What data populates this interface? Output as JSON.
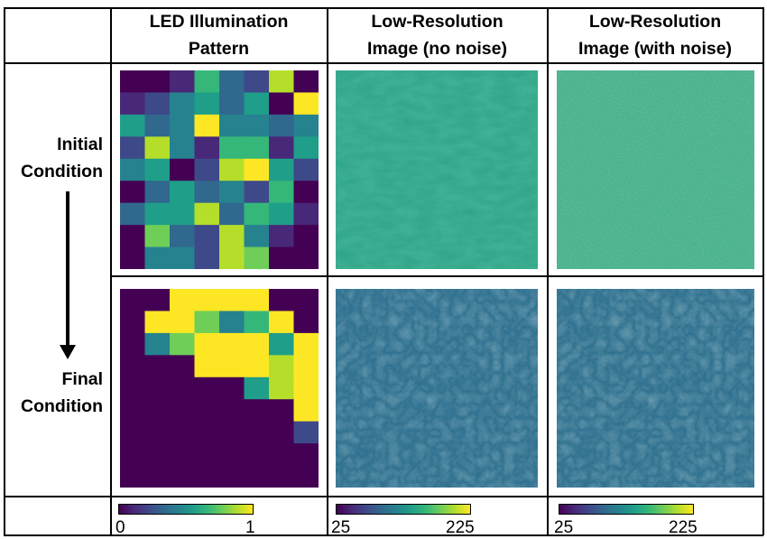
{
  "headers": {
    "col1": "LED Illumination Pattern",
    "col2": "Low-Resolution Image (no noise)",
    "col3": "Low-Resolution Image (with noise)"
  },
  "rows": {
    "initial": "Initial Condition",
    "final": "Final Condition"
  },
  "colorbars": {
    "led": {
      "min": "0",
      "max": "1"
    },
    "img_no_noise": {
      "min": "25",
      "max": "225"
    },
    "img_noise": {
      "min": "25",
      "max": "225"
    }
  },
  "colormap": [
    "#440154",
    "#482878",
    "#3e4989",
    "#31688e",
    "#26828e",
    "#1f9e89",
    "#35b779",
    "#6ece58",
    "#b5de2b",
    "#fde725"
  ],
  "led_initial": [
    [
      0.0,
      0.0,
      0.1,
      0.7,
      0.3,
      0.2,
      0.9,
      0.05
    ],
    [
      0.15,
      0.25,
      0.4,
      0.6,
      0.35,
      0.5,
      0.0,
      0.95
    ],
    [
      0.55,
      0.3,
      0.45,
      0.95,
      0.4,
      0.45,
      0.35,
      0.45
    ],
    [
      0.2,
      0.85,
      0.45,
      0.1,
      0.7,
      0.65,
      0.15,
      0.55
    ],
    [
      0.45,
      0.6,
      0.05,
      0.25,
      0.9,
      0.95,
      0.5,
      0.2
    ],
    [
      0.0,
      0.35,
      0.6,
      0.3,
      0.45,
      0.2,
      0.7,
      0.05
    ],
    [
      0.3,
      0.6,
      0.5,
      0.85,
      0.3,
      0.65,
      0.55,
      0.15
    ],
    [
      0.05,
      0.75,
      0.3,
      0.2,
      0.9,
      0.4,
      0.1,
      0.0
    ],
    [
      0.0,
      0.45,
      0.4,
      0.25,
      0.85,
      0.8,
      0.0,
      0.0
    ]
  ],
  "led_final": [
    [
      0.0,
      0.0,
      1.0,
      1.0,
      1.0,
      1.0,
      0.0,
      0.0
    ],
    [
      0.0,
      1.0,
      1.0,
      0.75,
      0.4,
      0.65,
      1.0,
      0.0
    ],
    [
      0.0,
      0.45,
      0.75,
      1.0,
      1.0,
      0.95,
      0.6,
      1.0
    ],
    [
      0.0,
      0.0,
      0.0,
      1.0,
      1.0,
      1.0,
      0.9,
      1.0
    ],
    [
      0.0,
      0.0,
      0.0,
      0.0,
      0.0,
      0.6,
      0.85,
      1.0
    ],
    [
      0.0,
      0.0,
      0.0,
      0.0,
      0.0,
      0.0,
      0.0,
      1.0
    ],
    [
      0.0,
      0.0,
      0.0,
      0.0,
      0.0,
      0.0,
      0.0,
      0.25
    ],
    [
      0.0,
      0.0,
      0.0,
      0.0,
      0.0,
      0.0,
      0.0,
      0.0
    ],
    [
      0.0,
      0.0,
      0.0,
      0.0,
      0.0,
      0.0,
      0.0,
      0.0
    ]
  ]
}
